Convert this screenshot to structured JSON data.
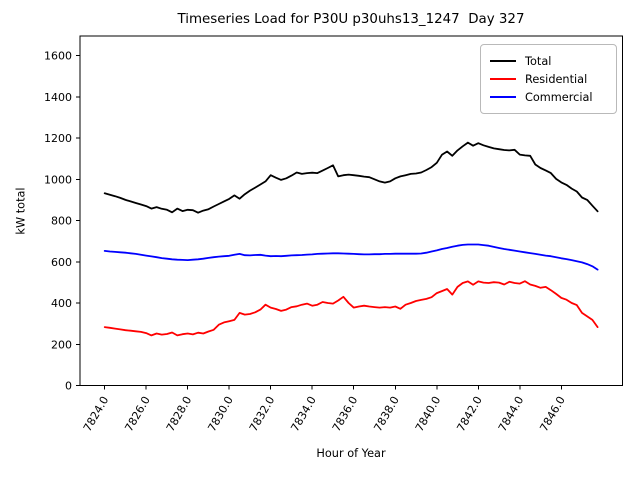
{
  "figure": {
    "background": "#ffffff"
  },
  "chart_data": {
    "type": "line",
    "title": "Timeseries Load for P30U p30uhs13_1247  Day 327",
    "xlabel": "Hour of Year",
    "ylabel": "kW total",
    "grid": false,
    "xlim": [
      7822.81,
      7848.94
    ],
    "ylim": [
      0,
      1695
    ],
    "xticks": [
      7824,
      7826,
      7828,
      7830,
      7832,
      7834,
      7836,
      7838,
      7840,
      7842,
      7844,
      7846
    ],
    "xtick_labels": [
      "7824.0",
      "7826.0",
      "7828.0",
      "7830.0",
      "7832.0",
      "7834.0",
      "7836.0",
      "7838.0",
      "7840.0",
      "7842.0",
      "7844.0",
      "7846.0"
    ],
    "xtick_rotation": 60,
    "yticks": [
      0,
      200,
      400,
      600,
      800,
      1000,
      1200,
      1400,
      1600
    ],
    "ytick_labels": [
      "0",
      "200",
      "400",
      "600",
      "800",
      "1000",
      "1200",
      "1400",
      "1600"
    ],
    "x_start": 7824.0,
    "x_step": 0.25,
    "n_points": 96,
    "legend": {
      "position": "upper right"
    },
    "series": [
      {
        "name": "Total",
        "color": "#000000",
        "values": [
          932,
          925,
          918,
          910,
          900,
          893,
          885,
          878,
          870,
          858,
          865,
          857,
          852,
          840,
          858,
          846,
          852,
          850,
          838,
          848,
          855,
          868,
          880,
          893,
          905,
          922,
          906,
          928,
          945,
          960,
          975,
          990,
          1020,
          1008,
          997,
          1005,
          1018,
          1033,
          1026,
          1030,
          1032,
          1030,
          1042,
          1055,
          1068,
          1014,
          1020,
          1023,
          1020,
          1017,
          1013,
          1010,
          1000,
          990,
          984,
          990,
          1005,
          1014,
          1020,
          1026,
          1028,
          1033,
          1045,
          1059,
          1080,
          1119,
          1135,
          1114,
          1140,
          1160,
          1178,
          1163,
          1175,
          1165,
          1157,
          1150,
          1146,
          1142,
          1140,
          1143,
          1120,
          1116,
          1114,
          1072,
          1055,
          1043,
          1030,
          1002,
          985,
          973,
          955,
          941,
          912,
          900,
          872,
          845
        ]
      },
      {
        "name": "Residential",
        "color": "#ff0000",
        "values": [
          283,
          280,
          276,
          272,
          268,
          266,
          263,
          260,
          254,
          243,
          252,
          247,
          250,
          257,
          243,
          249,
          252,
          248,
          256,
          252,
          262,
          270,
          295,
          306,
          312,
          318,
          352,
          344,
          347,
          355,
          368,
          392,
          378,
          371,
          362,
          368,
          380,
          384,
          392,
          397,
          387,
          392,
          405,
          400,
          397,
          412,
          430,
          400,
          378,
          383,
          387,
          383,
          380,
          378,
          380,
          378,
          383,
          372,
          392,
          400,
          410,
          415,
          420,
          428,
          448,
          458,
          468,
          441,
          478,
          497,
          505,
          489,
          505,
          499,
          497,
          501,
          499,
          490,
          503,
          497,
          494,
          506,
          490,
          483,
          474,
          478,
          462,
          444,
          425,
          416,
          400,
          390,
          352,
          335,
          318,
          283
        ]
      },
      {
        "name": "Commercial",
        "color": "#0000ff",
        "values": [
          653,
          650,
          648,
          646,
          644,
          641,
          638,
          634,
          630,
          626,
          622,
          618,
          615,
          612,
          610,
          609,
          608,
          610,
          612,
          615,
          619,
          622,
          625,
          627,
          629,
          634,
          638,
          632,
          631,
          633,
          634,
          630,
          627,
          628,
          627,
          629,
          631,
          632,
          633,
          635,
          636,
          638,
          639,
          640,
          641,
          641,
          640,
          639,
          638,
          637,
          636,
          636,
          637,
          637,
          638,
          638,
          639,
          639,
          639,
          639,
          639,
          640,
          644,
          650,
          655,
          662,
          667,
          673,
          678,
          682,
          684,
          684,
          684,
          681,
          678,
          672,
          667,
          662,
          658,
          654,
          650,
          646,
          642,
          638,
          634,
          630,
          627,
          622,
          617,
          613,
          608,
          603,
          597,
          589,
          578,
          562
        ]
      }
    ]
  }
}
